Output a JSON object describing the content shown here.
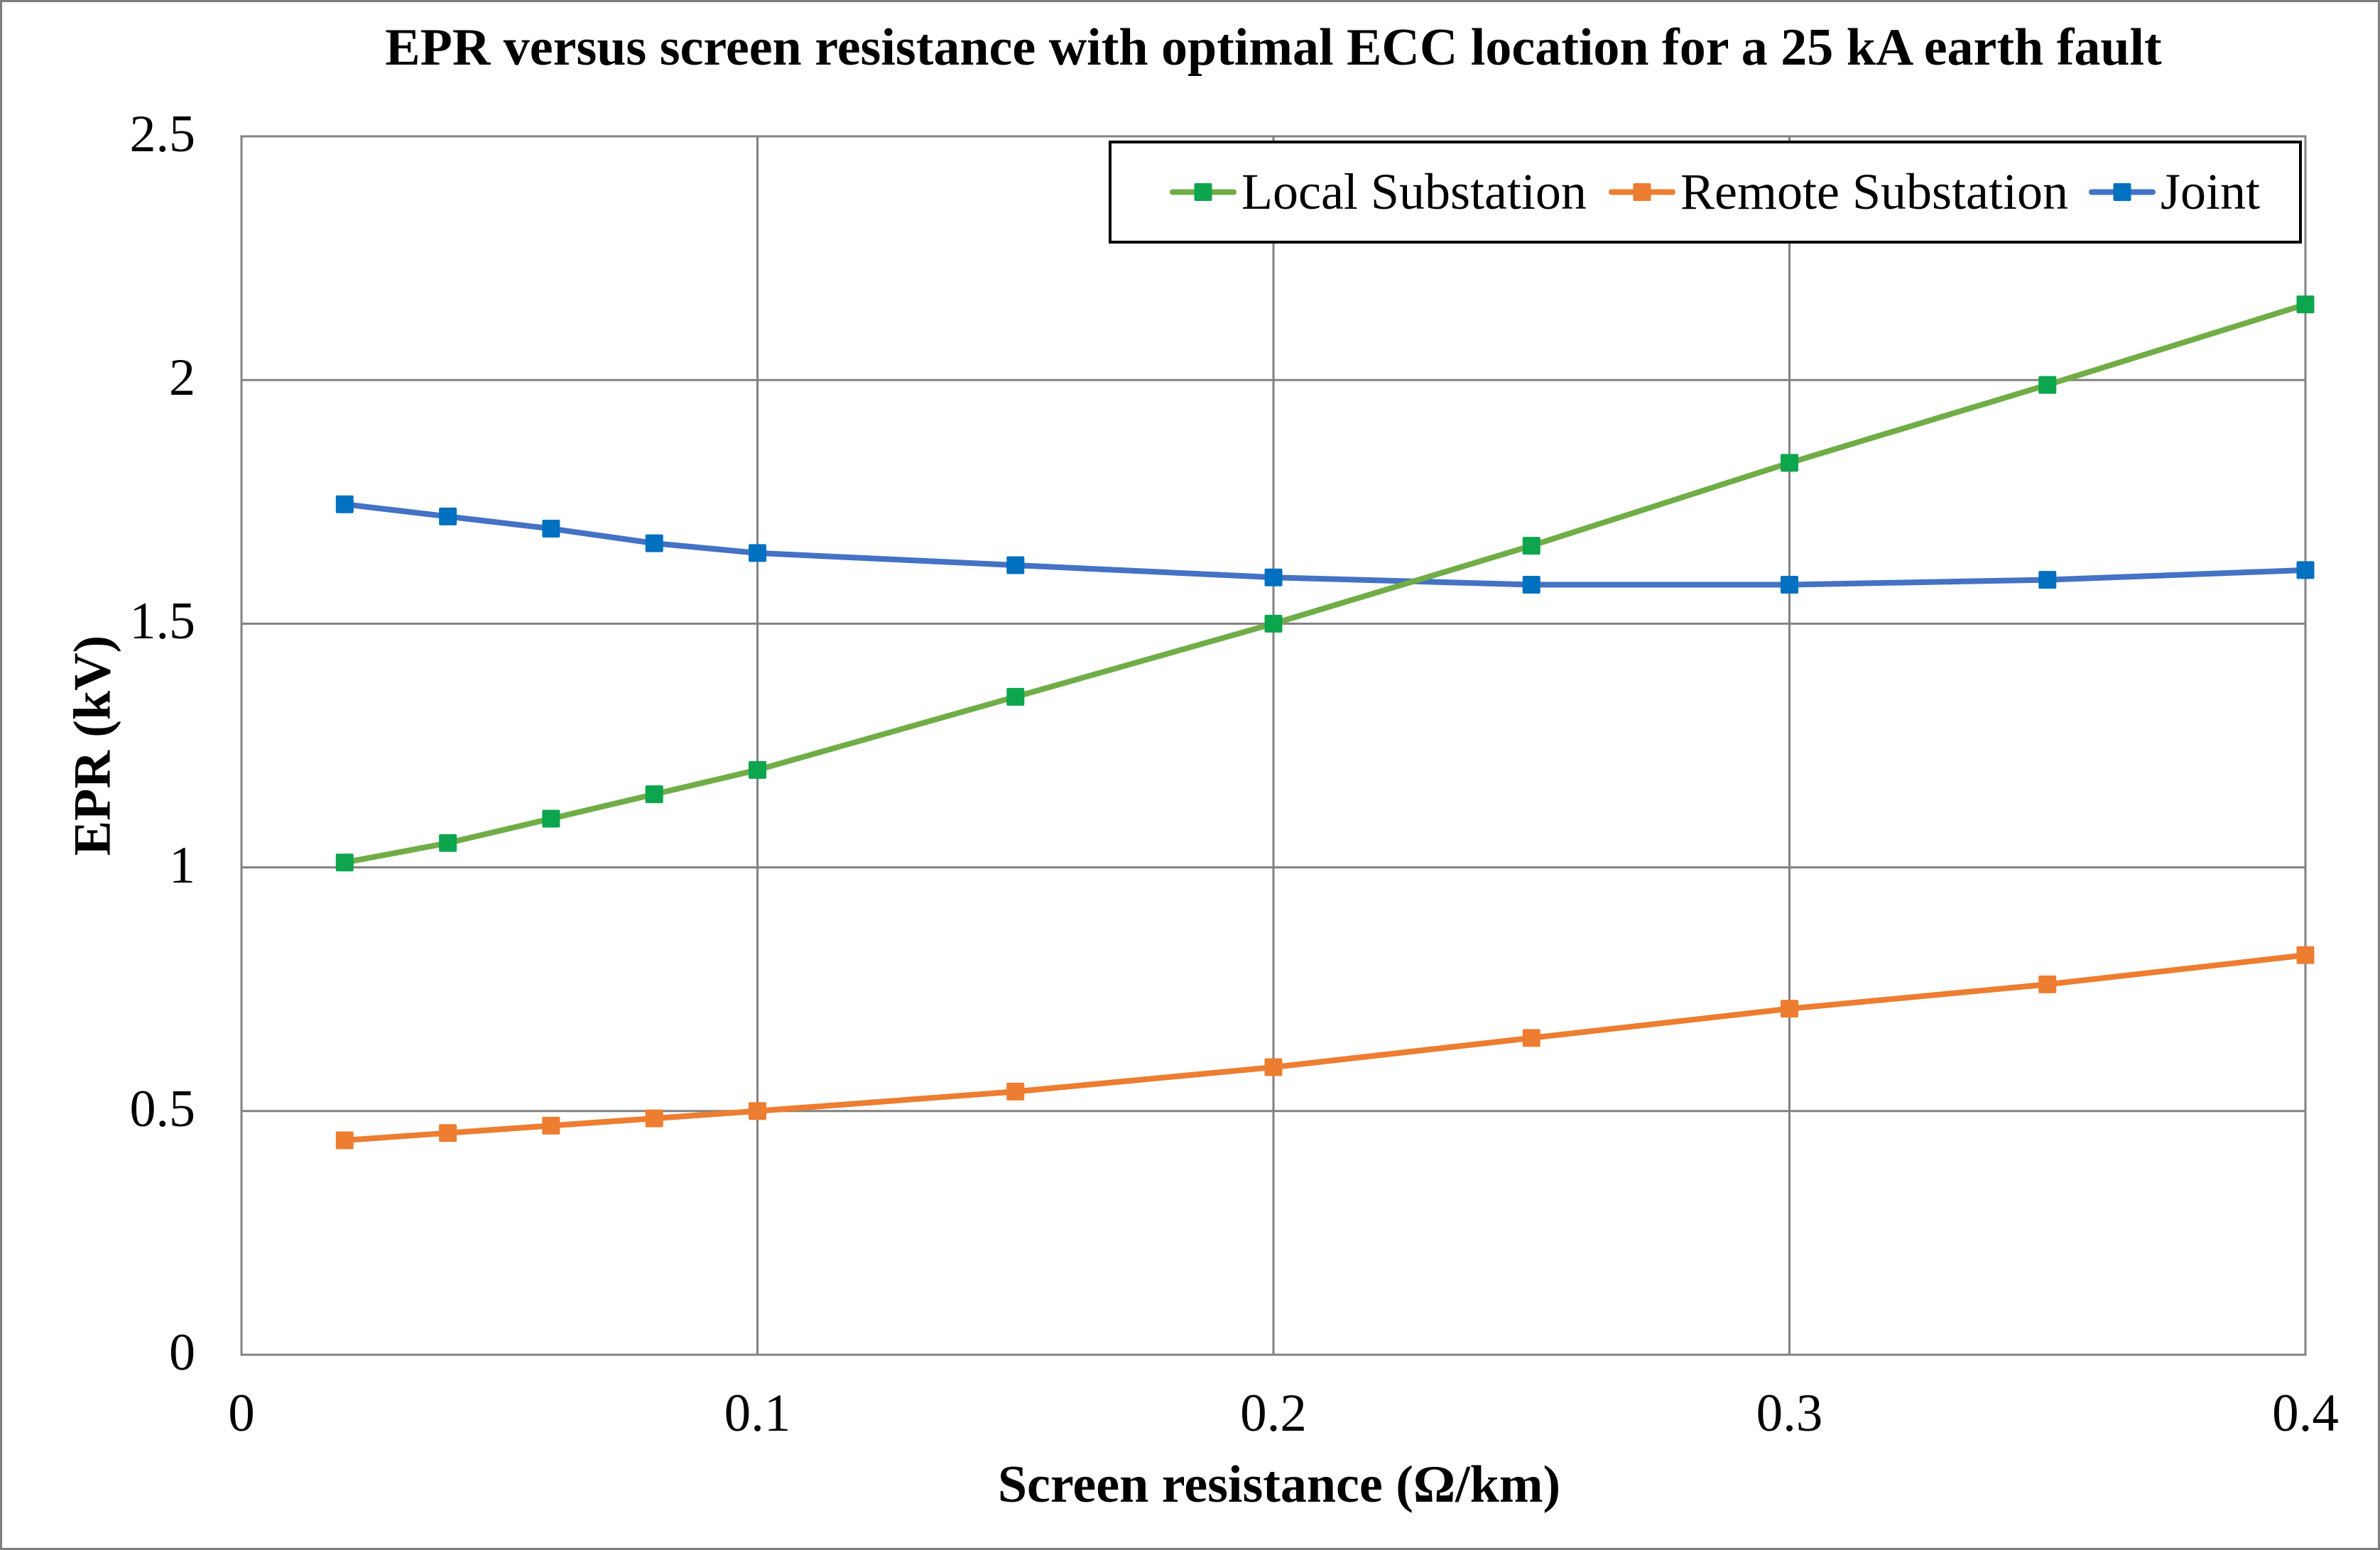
{
  "chart_data": {
    "type": "line",
    "title": "EPR versus screen resistance with optimal ECC location for a 25 kA earth fault",
    "xlabel": "Screen resistance (Ω/km)",
    "ylabel": "EPR (kV)",
    "xlim": [
      0,
      0.4
    ],
    "ylim": [
      0,
      2.5
    ],
    "xticks": {
      "values": [
        0,
        0.1,
        0.2,
        0.3,
        0.4
      ],
      "labels": [
        "0",
        "0.1",
        "0.2",
        "0.3",
        "0.4"
      ]
    },
    "yticks": {
      "values": [
        0,
        0.5,
        1,
        1.5,
        2,
        2.5
      ],
      "labels": [
        "0",
        "0.5",
        "1",
        "1.5",
        "2",
        "2.5"
      ]
    },
    "grid": true,
    "legend_position": "top-right-inside",
    "x": [
      0.02,
      0.04,
      0.06,
      0.08,
      0.1,
      0.15,
      0.2,
      0.25,
      0.3,
      0.35,
      0.4
    ],
    "series": [
      {
        "name": "Local Substation",
        "line_color": "#70AD47",
        "marker_color": "#0DA54E",
        "marker": "square",
        "values": [
          1.01,
          1.05,
          1.1,
          1.15,
          1.2,
          1.35,
          1.5,
          1.66,
          1.83,
          1.99,
          2.155
        ]
      },
      {
        "name": "Remote Substation",
        "line_color": "#ED7D31",
        "marker_color": "#ED7D31",
        "marker": "square",
        "values": [
          0.44,
          0.455,
          0.47,
          0.485,
          0.5,
          0.54,
          0.59,
          0.65,
          0.71,
          0.76,
          0.82
        ]
      },
      {
        "name": "Joint",
        "line_color": "#4472C4",
        "marker_color": "#0070C0",
        "marker": "square",
        "values": [
          1.745,
          1.72,
          1.695,
          1.665,
          1.645,
          1.62,
          1.595,
          1.58,
          1.58,
          1.59,
          1.61
        ]
      }
    ],
    "colors": {
      "gridline": "#828282",
      "plot_border": "#828282",
      "outer_border": "#7f7f7f",
      "legend_border": "#000000",
      "text": "#000000",
      "background": "#ffffff"
    },
    "layout": {
      "plot_left": 340,
      "plot_top": 192,
      "plot_right": 3246,
      "plot_bottom": 1908,
      "line_width": 8,
      "marker_size": 25,
      "gridline_width": 3,
      "legend_item_offsets": [
        82,
        700,
        1376
      ],
      "legend_sample_length": 94
    }
  }
}
